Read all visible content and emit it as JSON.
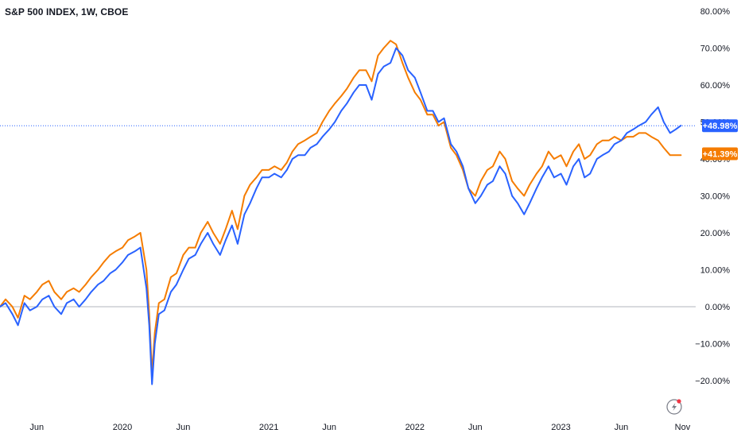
{
  "chart_data": {
    "type": "line",
    "title": "S&P 500 INDEX, 1W, CBOE",
    "colors": {
      "series_blue": "#2962ff",
      "series_orange": "#f57c00",
      "zero_line": "#b2b5be",
      "last_value_line": "#2962ff"
    },
    "y_unit": "%",
    "ylim": [
      -25,
      82
    ],
    "y_ticks": [
      "80.00%",
      "70.00%",
      "60.00%",
      "50.00%",
      "40.00%",
      "30.00%",
      "20.00%",
      "10.00%",
      "0.00%",
      "−10.00%",
      "−20.00%"
    ],
    "y_tick_values": [
      80,
      70,
      60,
      50,
      40,
      30,
      20,
      10,
      0,
      -10,
      -20
    ],
    "x_ticks": [
      "Jun",
      "2020",
      "Jun",
      "2021",
      "Jun",
      "2022",
      "Jun",
      "2023",
      "Jun",
      "Nov"
    ],
    "x_tick_dates": [
      "2019-06-01",
      "2020-01-01",
      "2020-06-01",
      "2021-01-01",
      "2021-06-01",
      "2022-01-01",
      "2022-06-01",
      "2023-01-01",
      "2023-06-01",
      "2023-11-01"
    ],
    "xlim": [
      "2019-03-01",
      "2023-11-20"
    ],
    "last_values": [
      {
        "label": "+48.98%",
        "value": 48.98,
        "color": "#2962ff"
      },
      {
        "label": "+41.39%",
        "value": 41.39,
        "color": "#f57c00"
      }
    ],
    "zero_line": 0,
    "series": [
      {
        "color": "#2962ff",
        "x": [
          "2019-03-01",
          "2019-03-15",
          "2019-04-01",
          "2019-04-15",
          "2019-05-01",
          "2019-05-15",
          "2019-06-01",
          "2019-06-15",
          "2019-07-01",
          "2019-07-15",
          "2019-08-01",
          "2019-08-15",
          "2019-09-01",
          "2019-09-15",
          "2019-10-01",
          "2019-10-15",
          "2019-11-01",
          "2019-11-15",
          "2019-12-01",
          "2019-12-15",
          "2020-01-01",
          "2020-01-15",
          "2020-02-01",
          "2020-02-15",
          "2020-03-01",
          "2020-03-08",
          "2020-03-15",
          "2020-03-22",
          "2020-04-01",
          "2020-04-15",
          "2020-05-01",
          "2020-05-15",
          "2020-06-01",
          "2020-06-15",
          "2020-07-01",
          "2020-07-15",
          "2020-08-01",
          "2020-08-15",
          "2020-09-01",
          "2020-09-15",
          "2020-10-01",
          "2020-10-15",
          "2020-11-01",
          "2020-11-15",
          "2020-12-01",
          "2020-12-15",
          "2021-01-01",
          "2021-01-15",
          "2021-02-01",
          "2021-02-15",
          "2021-03-01",
          "2021-03-15",
          "2021-04-01",
          "2021-04-15",
          "2021-05-01",
          "2021-05-15",
          "2021-06-01",
          "2021-06-15",
          "2021-07-01",
          "2021-07-15",
          "2021-08-01",
          "2021-08-15",
          "2021-09-01",
          "2021-09-15",
          "2021-10-01",
          "2021-10-15",
          "2021-11-01",
          "2021-11-15",
          "2021-12-01",
          "2021-12-15",
          "2022-01-01",
          "2022-01-15",
          "2022-02-01",
          "2022-02-15",
          "2022-03-01",
          "2022-03-15",
          "2022-04-01",
          "2022-04-15",
          "2022-05-01",
          "2022-05-15",
          "2022-06-01",
          "2022-06-15",
          "2022-07-01",
          "2022-07-15",
          "2022-08-01",
          "2022-08-15",
          "2022-09-01",
          "2022-09-15",
          "2022-10-01",
          "2022-10-15",
          "2022-11-01",
          "2022-11-15",
          "2022-12-01",
          "2022-12-15",
          "2023-01-01",
          "2023-01-15",
          "2023-02-01",
          "2023-02-15",
          "2023-03-01",
          "2023-03-15",
          "2023-04-01",
          "2023-04-15",
          "2023-05-01",
          "2023-05-15",
          "2023-06-01",
          "2023-06-15",
          "2023-07-01",
          "2023-07-15",
          "2023-08-01",
          "2023-08-15",
          "2023-09-01",
          "2023-09-15",
          "2023-10-01",
          "2023-10-15",
          "2023-10-28"
        ],
        "values": [
          0,
          1,
          -2,
          -5,
          1,
          -1,
          0,
          2,
          3,
          0,
          -2,
          1,
          2,
          0,
          2,
          4,
          6,
          7,
          9,
          10,
          12,
          14,
          15,
          16,
          5,
          -5,
          -21,
          -10,
          -2,
          -1,
          4,
          6,
          10,
          13,
          14,
          17,
          20,
          17,
          14,
          18,
          22,
          17,
          25,
          28,
          32,
          35,
          35,
          36,
          35,
          37,
          40,
          41,
          41,
          43,
          44,
          46,
          48,
          50,
          53,
          55,
          58,
          60,
          60,
          56,
          63,
          65,
          66,
          70,
          68,
          64,
          62,
          58,
          53,
          53,
          50,
          51,
          44,
          42,
          38,
          32,
          28,
          30,
          33,
          34,
          38,
          36,
          30,
          28,
          25,
          28,
          32,
          35,
          38,
          35,
          36,
          33,
          38,
          40,
          35,
          36,
          40,
          41,
          42,
          44,
          45,
          47,
          48,
          49,
          50,
          52,
          54,
          50,
          47,
          48,
          49
        ]
      },
      {
        "color": "#f57c00",
        "x": [
          "2019-03-01",
          "2019-03-15",
          "2019-04-01",
          "2019-04-15",
          "2019-05-01",
          "2019-05-15",
          "2019-06-01",
          "2019-06-15",
          "2019-07-01",
          "2019-07-15",
          "2019-08-01",
          "2019-08-15",
          "2019-09-01",
          "2019-09-15",
          "2019-10-01",
          "2019-10-15",
          "2019-11-01",
          "2019-11-15",
          "2019-12-01",
          "2019-12-15",
          "2020-01-01",
          "2020-01-15",
          "2020-02-01",
          "2020-02-15",
          "2020-03-01",
          "2020-03-08",
          "2020-03-15",
          "2020-03-22",
          "2020-04-01",
          "2020-04-15",
          "2020-05-01",
          "2020-05-15",
          "2020-06-01",
          "2020-06-15",
          "2020-07-01",
          "2020-07-15",
          "2020-08-01",
          "2020-08-15",
          "2020-09-01",
          "2020-09-15",
          "2020-10-01",
          "2020-10-15",
          "2020-11-01",
          "2020-11-15",
          "2020-12-01",
          "2020-12-15",
          "2021-01-01",
          "2021-01-15",
          "2021-02-01",
          "2021-02-15",
          "2021-03-01",
          "2021-03-15",
          "2021-04-01",
          "2021-04-15",
          "2021-05-01",
          "2021-05-15",
          "2021-06-01",
          "2021-06-15",
          "2021-07-01",
          "2021-07-15",
          "2021-08-01",
          "2021-08-15",
          "2021-09-01",
          "2021-09-15",
          "2021-10-01",
          "2021-10-15",
          "2021-11-01",
          "2021-11-15",
          "2021-12-01",
          "2021-12-15",
          "2022-01-01",
          "2022-01-15",
          "2022-02-01",
          "2022-02-15",
          "2022-03-01",
          "2022-03-15",
          "2022-04-01",
          "2022-04-15",
          "2022-05-01",
          "2022-05-15",
          "2022-06-01",
          "2022-06-15",
          "2022-07-01",
          "2022-07-15",
          "2022-08-01",
          "2022-08-15",
          "2022-09-01",
          "2022-09-15",
          "2022-10-01",
          "2022-10-15",
          "2022-11-01",
          "2022-11-15",
          "2022-12-01",
          "2022-12-15",
          "2023-01-01",
          "2023-01-15",
          "2023-02-01",
          "2023-02-15",
          "2023-03-01",
          "2023-03-15",
          "2023-04-01",
          "2023-04-15",
          "2023-05-01",
          "2023-05-15",
          "2023-06-01",
          "2023-06-15",
          "2023-07-01",
          "2023-07-15",
          "2023-08-01",
          "2023-08-15",
          "2023-09-01",
          "2023-09-15",
          "2023-10-01",
          "2023-10-15",
          "2023-10-28"
        ],
        "values": [
          0,
          2,
          0,
          -3,
          3,
          2,
          4,
          6,
          7,
          4,
          2,
          4,
          5,
          4,
          6,
          8,
          10,
          12,
          14,
          15,
          16,
          18,
          19,
          20,
          10,
          -2,
          -18,
          -7,
          1,
          2,
          8,
          9,
          14,
          16,
          16,
          20,
          23,
          20,
          17,
          21,
          26,
          21,
          30,
          33,
          35,
          37,
          37,
          38,
          37,
          39,
          42,
          44,
          45,
          46,
          47,
          50,
          53,
          55,
          57,
          59,
          62,
          64,
          64,
          61,
          68,
          70,
          72,
          71,
          66,
          62,
          58,
          56,
          52,
          52,
          49,
          50,
          43,
          41,
          37,
          32,
          30,
          34,
          37,
          38,
          42,
          40,
          34,
          32,
          30,
          33,
          36,
          38,
          42,
          40,
          41,
          38,
          42,
          44,
          40,
          41,
          44,
          45,
          45,
          46,
          45,
          46,
          46,
          47,
          47,
          46,
          45,
          43,
          41,
          41,
          41
        ]
      }
    ]
  }
}
